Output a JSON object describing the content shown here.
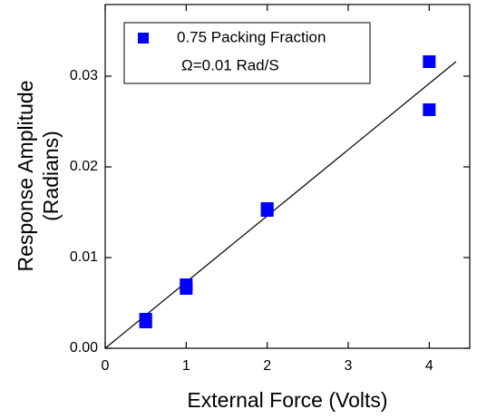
{
  "chart_data": {
    "type": "scatter",
    "xlabel": "External Force (Volts)",
    "ylabel": [
      "Response Amplitude",
      "(Radians)"
    ],
    "series": [
      {
        "name": "0.75 Packing Fraction",
        "color": "#0000ff",
        "x": [
          0.5,
          0.5,
          1,
          1,
          2,
          2,
          4,
          4
        ],
        "values": [
          0.0029,
          0.0032,
          0.0066,
          0.007,
          0.0152,
          0.0154,
          0.0316,
          0.0263
        ]
      }
    ],
    "fit": {
      "color": "#000000",
      "x": [
        0,
        4.33
      ],
      "values": [
        0,
        0.0316
      ]
    },
    "annotation": "Ω=0.01 Rad/S",
    "xlim": [
      0,
      4.5
    ],
    "ylim": [
      0,
      0.0379
    ],
    "xticks": [
      0,
      1,
      2,
      3,
      4
    ],
    "yticks": [
      {
        "value": 0,
        "label": "0.00"
      },
      0.01,
      0.02,
      0.03
    ],
    "legend": "top-left"
  }
}
